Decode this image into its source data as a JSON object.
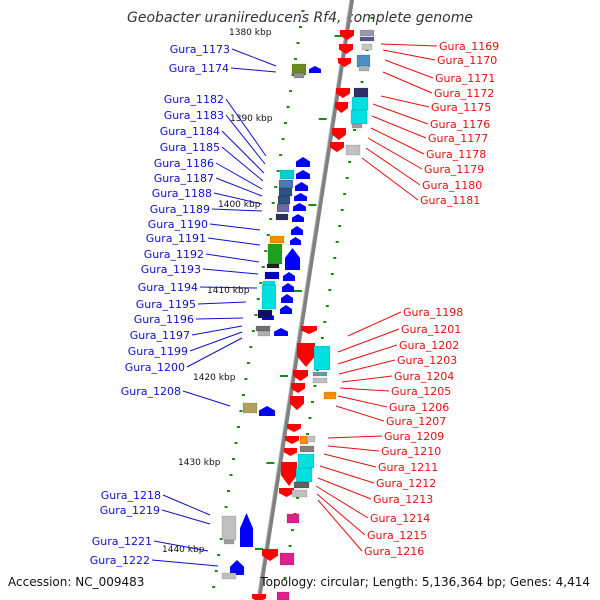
{
  "title": "Geobacter uraniireducens Rf4, complete genome",
  "accession": "Accession: NC_009483",
  "topology": "Topology: circular; Length: 5,136,364 bp; Genes: 4,414",
  "colors": {
    "backbone": "#808080",
    "ticks": "#1a8a1a",
    "forward_label": "#1010c8",
    "reverse_label": "#e01010",
    "forward_arrow": "#0000ff",
    "reverse_arrow": "#ff0000"
  },
  "kbp_labels": [
    "1380 kbp",
    "1390 kbp",
    "1400 kbp",
    "1410 kbp",
    "1420 kbp",
    "1430 kbp",
    "1440 kbp"
  ],
  "forward_genes": [
    "Gura_1173",
    "Gura_1174",
    "Gura_1182",
    "Gura_1183",
    "Gura_1184",
    "Gura_1185",
    "Gura_1186",
    "Gura_1187",
    "Gura_1188",
    "Gura_1189",
    "Gura_1190",
    "Gura_1191",
    "Gura_1192",
    "Gura_1193",
    "Gura_1194",
    "Gura_1195",
    "Gura_1196",
    "Gura_1197",
    "Gura_1199",
    "Gura_1200",
    "Gura_1208",
    "Gura_1218",
    "Gura_1219",
    "Gura_1221",
    "Gura_1222"
  ],
  "reverse_genes": [
    "Gura_1169",
    "Gura_1170",
    "Gura_1171",
    "Gura_1172",
    "Gura_1175",
    "Gura_1176",
    "Gura_1177",
    "Gura_1178",
    "Gura_1179",
    "Gura_1180",
    "Gura_1181",
    "Gura_1198",
    "Gura_1201",
    "Gura_1202",
    "Gura_1203",
    "Gura_1204",
    "Gura_1205",
    "Gura_1206",
    "Gura_1207",
    "Gura_1209",
    "Gura_1210",
    "Gura_1211",
    "Gura_1212",
    "Gura_1213",
    "Gura_1214",
    "Gura_1215",
    "Gura_1216"
  ]
}
